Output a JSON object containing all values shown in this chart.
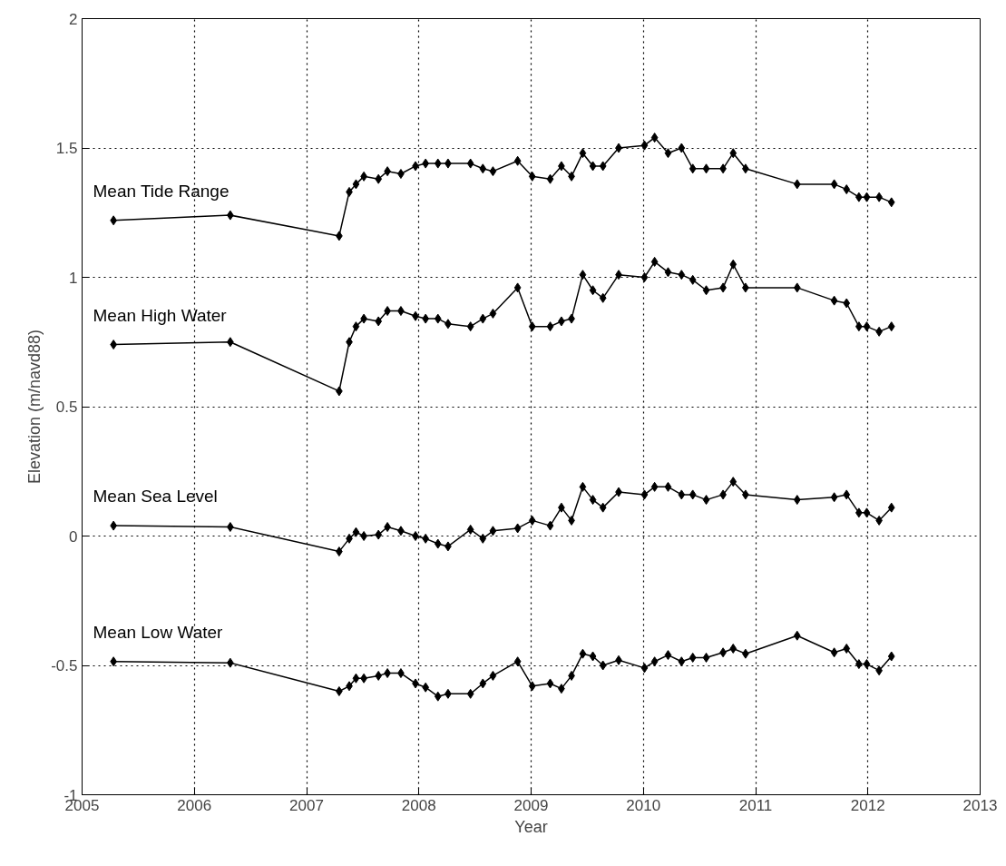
{
  "chart_data": {
    "type": "line",
    "xlabel": "Year",
    "ylabel": "Elevation (m/navd88)",
    "x": [
      2005.28,
      2006.32,
      2007.29,
      2007.38,
      2007.44,
      2007.51,
      2007.64,
      2007.72,
      2007.84,
      2007.97,
      2008.06,
      2008.17,
      2008.26,
      2008.46,
      2008.57,
      2008.66,
      2008.88,
      2009.01,
      2009.17,
      2009.27,
      2009.36,
      2009.46,
      2009.55,
      2009.64,
      2009.78,
      2010.01,
      2010.1,
      2010.22,
      2010.34,
      2010.44,
      2010.56,
      2010.71,
      2010.8,
      2010.91,
      2011.37,
      2011.7,
      2011.81,
      2011.92,
      2011.99,
      2012.1,
      2012.21
    ],
    "series": [
      {
        "name": "Mean Tide Range",
        "color": "#000000",
        "values": [
          1.22,
          1.24,
          1.16,
          1.33,
          1.36,
          1.39,
          1.38,
          1.41,
          1.4,
          1.43,
          1.44,
          1.44,
          1.44,
          1.44,
          1.42,
          1.41,
          1.45,
          1.39,
          1.38,
          1.43,
          1.39,
          1.48,
          1.43,
          1.43,
          1.5,
          1.51,
          1.54,
          1.48,
          1.5,
          1.42,
          1.42,
          1.42,
          1.48,
          1.42,
          1.36,
          1.36,
          1.34,
          1.31,
          1.31,
          1.31,
          1.29
        ]
      },
      {
        "name": "Mean High Water",
        "color": "#000000",
        "values": [
          0.74,
          0.75,
          0.56,
          0.75,
          0.81,
          0.84,
          0.83,
          0.87,
          0.87,
          0.85,
          0.84,
          0.84,
          0.82,
          0.81,
          0.84,
          0.86,
          0.96,
          0.81,
          0.81,
          0.83,
          0.84,
          1.01,
          0.95,
          0.92,
          1.01,
          1.0,
          1.06,
          1.02,
          1.01,
          0.99,
          0.95,
          0.96,
          1.05,
          0.96,
          0.96,
          0.91,
          0.9,
          0.81,
          0.81,
          0.79,
          0.81
        ]
      },
      {
        "name": "Mean Sea Level",
        "color": "#000000",
        "values": [
          0.04,
          0.035,
          -0.06,
          -0.01,
          0.015,
          0.0,
          0.005,
          0.035,
          0.02,
          0.0,
          -0.01,
          -0.03,
          -0.04,
          0.025,
          -0.01,
          0.02,
          0.03,
          0.06,
          0.04,
          0.11,
          0.06,
          0.19,
          0.14,
          0.11,
          0.17,
          0.16,
          0.19,
          0.19,
          0.16,
          0.16,
          0.14,
          0.16,
          0.21,
          0.16,
          0.14,
          0.15,
          0.16,
          0.09,
          0.09,
          0.06,
          0.11
        ]
      },
      {
        "name": "Mean Low Water",
        "color": "#000000",
        "values": [
          -0.485,
          -0.49,
          -0.6,
          -0.58,
          -0.55,
          -0.55,
          -0.54,
          -0.53,
          -0.53,
          -0.57,
          -0.585,
          -0.62,
          -0.61,
          -0.61,
          -0.57,
          -0.54,
          -0.485,
          -0.58,
          -0.57,
          -0.59,
          -0.54,
          -0.455,
          -0.465,
          -0.5,
          -0.48,
          -0.51,
          -0.485,
          -0.46,
          -0.485,
          -0.47,
          -0.47,
          -0.45,
          -0.435,
          -0.455,
          -0.385,
          -0.45,
          -0.435,
          -0.495,
          -0.495,
          -0.52,
          -0.465
        ]
      }
    ],
    "xlim": [
      2005,
      2013
    ],
    "xticks": [
      2005,
      2006,
      2007,
      2008,
      2009,
      2010,
      2011,
      2012,
      2013
    ],
    "ylim": [
      -1,
      2
    ],
    "yticks": [
      -1,
      -0.5,
      0,
      0.5,
      1,
      1.5,
      2
    ],
    "grid": true,
    "marker": "diamond",
    "line_style": "solid"
  }
}
